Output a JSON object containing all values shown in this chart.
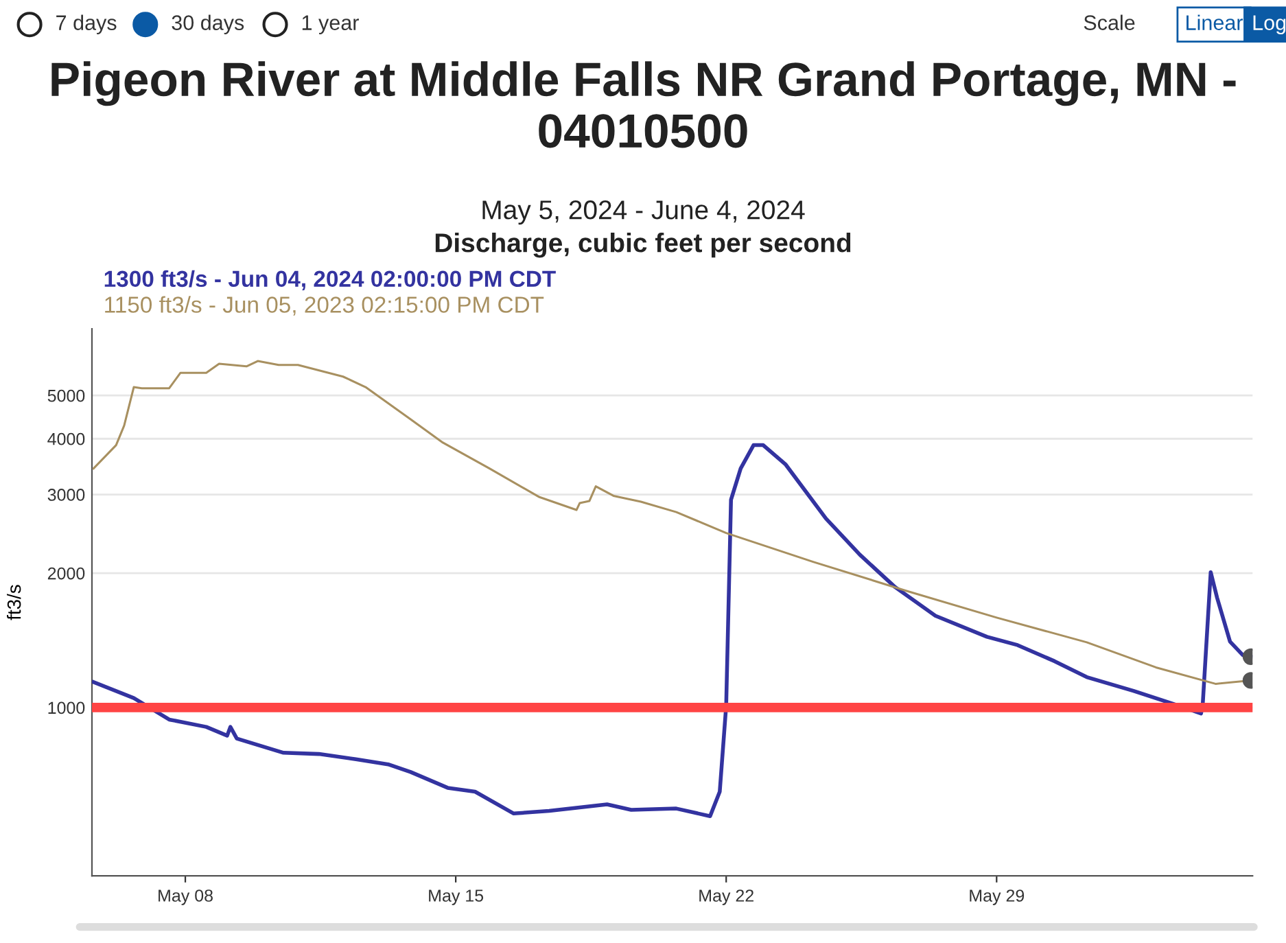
{
  "chart_data": {
    "type": "line",
    "title": "Pigeon River at Middle Falls NR Grand Portage, MN - 04010500",
    "subtitle": "May 5, 2024 - June 4, 2024\nDischarge, cubic feet per second",
    "ylabel": "ft3/s",
    "annotations": [
      "7 days",
      "30 days",
      "1 year",
      "Scale",
      "Linear",
      "Log"
    ],
    "log": "y",
    "xlim": [
      "2024-05-05T14:00",
      "2024-06-04T15:00"
    ],
    "xticks": [
      {
        "value": "2024-05-08",
        "label": "May 08"
      },
      {
        "value": "2024-05-15",
        "label": "May 15"
      },
      {
        "value": "2024-05-22",
        "label": "May 22"
      },
      {
        "value": "2024-05-29",
        "label": "May 29"
      }
    ],
    "ylim": [
      420,
      7050
    ],
    "yticks": [
      1000,
      2000,
      3000,
      4000,
      5000
    ],
    "grid": "y",
    "legend": "top left",
    "line_style": "solid",
    "ref_lines": [
      {
        "axis": "y",
        "value": 1000,
        "color": "#ff4444"
      }
    ],
    "series": [
      {
        "name": "1300 ft3/s - Jun 04, 2024 02:00:00 PM CDT",
        "color": "#3333a0",
        "x": [
          "2024-05-05T15:00",
          "2024-05-06T16:00",
          "2024-05-07T14:00",
          "2024-05-08T13:00",
          "2024-05-09T02:00",
          "2024-05-09T04:00",
          "2024-05-09T08:00",
          "2024-05-10T13:00",
          "2024-05-11T11:00",
          "2024-05-12T10:00",
          "2024-05-13T06:00",
          "2024-05-13T20:00",
          "2024-05-14T19:00",
          "2024-05-15T12:00",
          "2024-05-16T12:00",
          "2024-05-17T10:00",
          "2024-05-18T22:00",
          "2024-05-19T13:00",
          "2024-05-20T17:00",
          "2024-05-21T14:00",
          "2024-05-21T20:00",
          "2024-05-22T00:00",
          "2024-05-22T03:00",
          "2024-05-22T09:00",
          "2024-05-22T17:00",
          "2024-05-22T23:00",
          "2024-05-23T13:00",
          "2024-05-24T14:00",
          "2024-05-25T11:00",
          "2024-05-26T09:00",
          "2024-05-27T10:00",
          "2024-05-28T18:00",
          "2024-05-29T13:00",
          "2024-05-30T12:00",
          "2024-05-31T08:00",
          "2024-06-01T13:00",
          "2024-06-02T17:00",
          "2024-06-03T07:00",
          "2024-06-03T08:00",
          "2024-06-03T13:00",
          "2024-06-03T17:00",
          "2024-06-04T01:00",
          "2024-06-04T09:00",
          "2024-06-04T14:00"
        ],
        "values": [
          1140,
          1050,
          940,
          905,
          865,
          905,
          852,
          792,
          787,
          766,
          746,
          717,
          661,
          648,
          579,
          587,
          607,
          590,
          594,
          571,
          648,
          1010,
          2920,
          3430,
          3870,
          3870,
          3500,
          2650,
          2200,
          1860,
          1605,
          1440,
          1380,
          1270,
          1170,
          1090,
          1010,
          970,
          1010,
          2010,
          1760,
          1405,
          1310,
          1300
        ]
      },
      {
        "name": "1150 ft3/s - Jun 05, 2023 02:15:00 PM CDT",
        "color": "#a89060",
        "x": [
          "2024-05-05T15:00",
          "2024-05-06T05:00",
          "2024-05-06T10:00",
          "2024-05-06T16:00",
          "2024-05-06T21:00",
          "2024-05-07T14:00",
          "2024-05-07T21:00",
          "2024-05-08T13:00",
          "2024-05-08T21:00",
          "2024-05-09T14:00",
          "2024-05-09T21:00",
          "2024-05-10T10:00",
          "2024-05-10T22:00",
          "2024-05-12T02:00",
          "2024-05-12T16:00",
          "2024-05-13T20:00",
          "2024-05-14T16:00",
          "2024-05-15T21:00",
          "2024-05-17T04:00",
          "2024-05-18T03:00",
          "2024-05-18T05:00",
          "2024-05-18T11:00",
          "2024-05-18T15:00",
          "2024-05-19T02:00",
          "2024-05-19T19:00",
          "2024-05-20T17:00",
          "2024-05-22T00:00",
          "2024-05-24T06:00",
          "2024-05-26T15:00",
          "2024-05-29T00:00",
          "2024-05-31T08:00",
          "2024-06-02T03:00",
          "2024-06-03T16:00",
          "2024-06-04T14:00"
        ],
        "values": [
          3430,
          3870,
          4280,
          5220,
          5190,
          5190,
          5620,
          5620,
          5890,
          5810,
          5970,
          5850,
          5850,
          5510,
          5220,
          4420,
          3920,
          3430,
          2960,
          2770,
          2870,
          2900,
          3130,
          2980,
          2890,
          2740,
          2460,
          2120,
          1830,
          1590,
          1400,
          1230,
          1130,
          1150
        ]
      },
      {
        "type": "scatter",
        "color": "#555555",
        "x": [
          "2024-06-04T14:00",
          "2024-06-04T14:00"
        ],
        "values": [
          1300,
          1150
        ]
      }
    ]
  }
}
